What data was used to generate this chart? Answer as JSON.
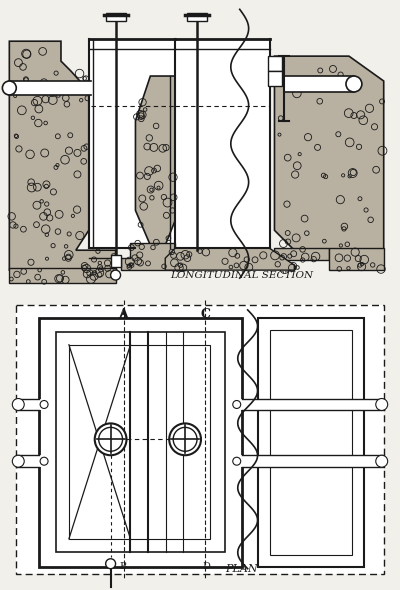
{
  "bg_color": "#f2f0eb",
  "line_color": "#1a1a1a",
  "stone_color": "#b8b0a0",
  "stone_light": "#d0c8b8",
  "white": "#ffffff",
  "title_longitudinal": "Longitudinal Section",
  "title_plan": "Plan",
  "label_A": "A",
  "label_B": "B",
  "label_C": "C",
  "label_D": "D"
}
